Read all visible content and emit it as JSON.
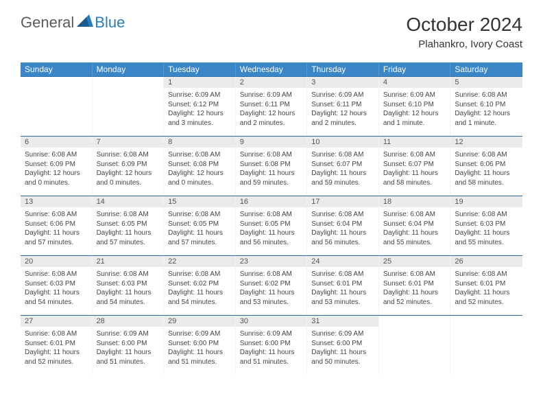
{
  "logo": {
    "text_general": "General",
    "text_blue": "Blue",
    "accent_color": "#2b7bbf"
  },
  "title": "October 2024",
  "location": "Plahankro, Ivory Coast",
  "header_bg": "#3b86c6",
  "day_num_bg": "#ebebeb",
  "border_color": "#2b6aa3",
  "day_headers": [
    "Sunday",
    "Monday",
    "Tuesday",
    "Wednesday",
    "Thursday",
    "Friday",
    "Saturday"
  ],
  "weeks": [
    [
      {
        "n": "",
        "sunrise": "",
        "sunset": "",
        "daylight": ""
      },
      {
        "n": "",
        "sunrise": "",
        "sunset": "",
        "daylight": ""
      },
      {
        "n": "1",
        "sunrise": "Sunrise: 6:09 AM",
        "sunset": "Sunset: 6:12 PM",
        "daylight": "Daylight: 12 hours and 3 minutes."
      },
      {
        "n": "2",
        "sunrise": "Sunrise: 6:09 AM",
        "sunset": "Sunset: 6:11 PM",
        "daylight": "Daylight: 12 hours and 2 minutes."
      },
      {
        "n": "3",
        "sunrise": "Sunrise: 6:09 AM",
        "sunset": "Sunset: 6:11 PM",
        "daylight": "Daylight: 12 hours and 2 minutes."
      },
      {
        "n": "4",
        "sunrise": "Sunrise: 6:09 AM",
        "sunset": "Sunset: 6:10 PM",
        "daylight": "Daylight: 12 hours and 1 minute."
      },
      {
        "n": "5",
        "sunrise": "Sunrise: 6:08 AM",
        "sunset": "Sunset: 6:10 PM",
        "daylight": "Daylight: 12 hours and 1 minute."
      }
    ],
    [
      {
        "n": "6",
        "sunrise": "Sunrise: 6:08 AM",
        "sunset": "Sunset: 6:09 PM",
        "daylight": "Daylight: 12 hours and 0 minutes."
      },
      {
        "n": "7",
        "sunrise": "Sunrise: 6:08 AM",
        "sunset": "Sunset: 6:09 PM",
        "daylight": "Daylight: 12 hours and 0 minutes."
      },
      {
        "n": "8",
        "sunrise": "Sunrise: 6:08 AM",
        "sunset": "Sunset: 6:08 PM",
        "daylight": "Daylight: 12 hours and 0 minutes."
      },
      {
        "n": "9",
        "sunrise": "Sunrise: 6:08 AM",
        "sunset": "Sunset: 6:08 PM",
        "daylight": "Daylight: 11 hours and 59 minutes."
      },
      {
        "n": "10",
        "sunrise": "Sunrise: 6:08 AM",
        "sunset": "Sunset: 6:07 PM",
        "daylight": "Daylight: 11 hours and 59 minutes."
      },
      {
        "n": "11",
        "sunrise": "Sunrise: 6:08 AM",
        "sunset": "Sunset: 6:07 PM",
        "daylight": "Daylight: 11 hours and 58 minutes."
      },
      {
        "n": "12",
        "sunrise": "Sunrise: 6:08 AM",
        "sunset": "Sunset: 6:06 PM",
        "daylight": "Daylight: 11 hours and 58 minutes."
      }
    ],
    [
      {
        "n": "13",
        "sunrise": "Sunrise: 6:08 AM",
        "sunset": "Sunset: 6:06 PM",
        "daylight": "Daylight: 11 hours and 57 minutes."
      },
      {
        "n": "14",
        "sunrise": "Sunrise: 6:08 AM",
        "sunset": "Sunset: 6:05 PM",
        "daylight": "Daylight: 11 hours and 57 minutes."
      },
      {
        "n": "15",
        "sunrise": "Sunrise: 6:08 AM",
        "sunset": "Sunset: 6:05 PM",
        "daylight": "Daylight: 11 hours and 57 minutes."
      },
      {
        "n": "16",
        "sunrise": "Sunrise: 6:08 AM",
        "sunset": "Sunset: 6:05 PM",
        "daylight": "Daylight: 11 hours and 56 minutes."
      },
      {
        "n": "17",
        "sunrise": "Sunrise: 6:08 AM",
        "sunset": "Sunset: 6:04 PM",
        "daylight": "Daylight: 11 hours and 56 minutes."
      },
      {
        "n": "18",
        "sunrise": "Sunrise: 6:08 AM",
        "sunset": "Sunset: 6:04 PM",
        "daylight": "Daylight: 11 hours and 55 minutes."
      },
      {
        "n": "19",
        "sunrise": "Sunrise: 6:08 AM",
        "sunset": "Sunset: 6:03 PM",
        "daylight": "Daylight: 11 hours and 55 minutes."
      }
    ],
    [
      {
        "n": "20",
        "sunrise": "Sunrise: 6:08 AM",
        "sunset": "Sunset: 6:03 PM",
        "daylight": "Daylight: 11 hours and 54 minutes."
      },
      {
        "n": "21",
        "sunrise": "Sunrise: 6:08 AM",
        "sunset": "Sunset: 6:03 PM",
        "daylight": "Daylight: 11 hours and 54 minutes."
      },
      {
        "n": "22",
        "sunrise": "Sunrise: 6:08 AM",
        "sunset": "Sunset: 6:02 PM",
        "daylight": "Daylight: 11 hours and 54 minutes."
      },
      {
        "n": "23",
        "sunrise": "Sunrise: 6:08 AM",
        "sunset": "Sunset: 6:02 PM",
        "daylight": "Daylight: 11 hours and 53 minutes."
      },
      {
        "n": "24",
        "sunrise": "Sunrise: 6:08 AM",
        "sunset": "Sunset: 6:01 PM",
        "daylight": "Daylight: 11 hours and 53 minutes."
      },
      {
        "n": "25",
        "sunrise": "Sunrise: 6:08 AM",
        "sunset": "Sunset: 6:01 PM",
        "daylight": "Daylight: 11 hours and 52 minutes."
      },
      {
        "n": "26",
        "sunrise": "Sunrise: 6:08 AM",
        "sunset": "Sunset: 6:01 PM",
        "daylight": "Daylight: 11 hours and 52 minutes."
      }
    ],
    [
      {
        "n": "27",
        "sunrise": "Sunrise: 6:08 AM",
        "sunset": "Sunset: 6:01 PM",
        "daylight": "Daylight: 11 hours and 52 minutes."
      },
      {
        "n": "28",
        "sunrise": "Sunrise: 6:09 AM",
        "sunset": "Sunset: 6:00 PM",
        "daylight": "Daylight: 11 hours and 51 minutes."
      },
      {
        "n": "29",
        "sunrise": "Sunrise: 6:09 AM",
        "sunset": "Sunset: 6:00 PM",
        "daylight": "Daylight: 11 hours and 51 minutes."
      },
      {
        "n": "30",
        "sunrise": "Sunrise: 6:09 AM",
        "sunset": "Sunset: 6:00 PM",
        "daylight": "Daylight: 11 hours and 51 minutes."
      },
      {
        "n": "31",
        "sunrise": "Sunrise: 6:09 AM",
        "sunset": "Sunset: 6:00 PM",
        "daylight": "Daylight: 11 hours and 50 minutes."
      },
      {
        "n": "",
        "sunrise": "",
        "sunset": "",
        "daylight": ""
      },
      {
        "n": "",
        "sunrise": "",
        "sunset": "",
        "daylight": ""
      }
    ]
  ]
}
